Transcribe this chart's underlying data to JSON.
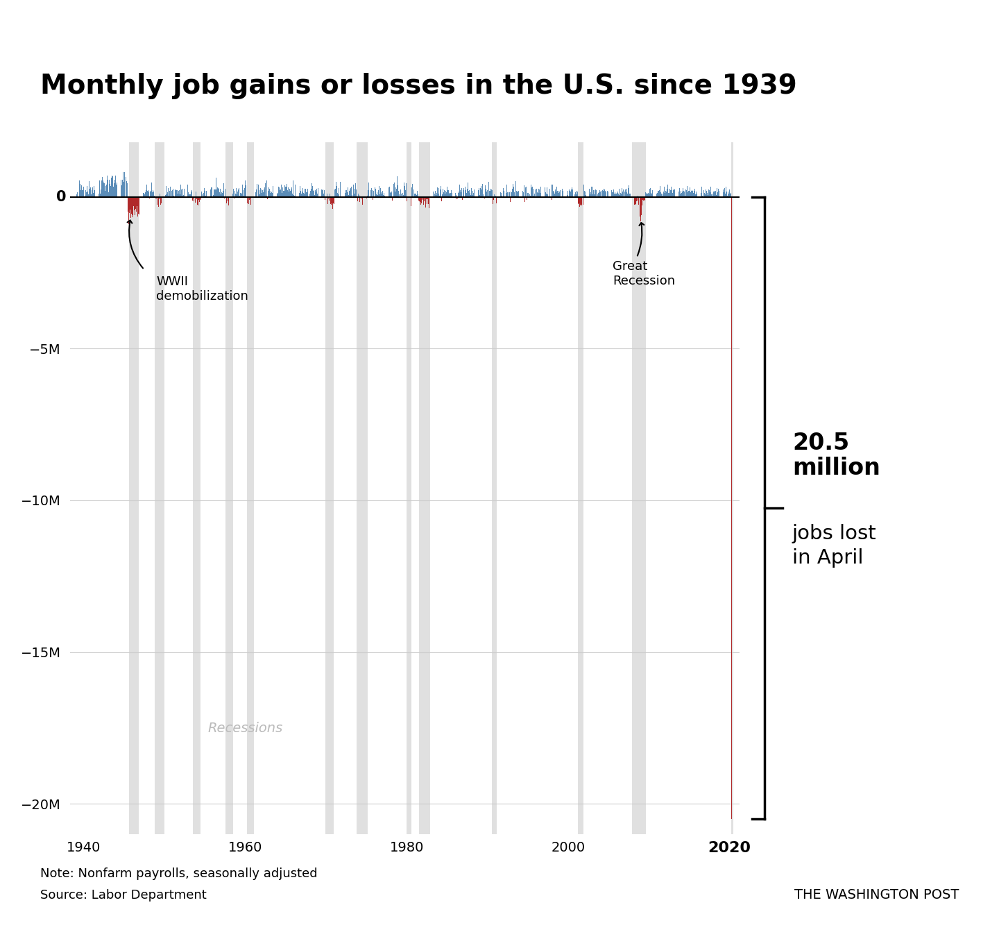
{
  "title": "Monthly job gains or losses in the U.S. since 1939",
  "note": "Note: Nonfarm payrolls, seasonally adjusted",
  "source": "Source: Labor Department",
  "credit": "THE WASHINGTON POST",
  "bar_color_pos": "#5b8db8",
  "bar_color_neg": "#b0292a",
  "recession_color": "#e0e0e0",
  "ylim": [
    -21000,
    1800
  ],
  "yticks": [
    0,
    -5000,
    -10000,
    -15000,
    -20000
  ],
  "ytick_labels": [
    "0",
    "−5M",
    "−10M",
    "−15M",
    "−20M"
  ],
  "xticks": [
    1940,
    1960,
    1980,
    2000,
    2020
  ],
  "recessions": [
    [
      1945.6,
      1946.8
    ],
    [
      1948.8,
      1950.0
    ],
    [
      1953.5,
      1954.5
    ],
    [
      1957.6,
      1958.5
    ],
    [
      1960.2,
      1961.1
    ],
    [
      1969.9,
      1971.0
    ],
    [
      1973.8,
      1975.2
    ],
    [
      1980.0,
      1980.6
    ],
    [
      1981.5,
      1982.9
    ],
    [
      1990.6,
      1991.2
    ],
    [
      2001.2,
      2001.9
    ],
    [
      2007.9,
      2009.6
    ],
    [
      2020.2,
      2020.45
    ]
  ],
  "april_2020_value": -20500,
  "april_2020_x": 2020.33
}
